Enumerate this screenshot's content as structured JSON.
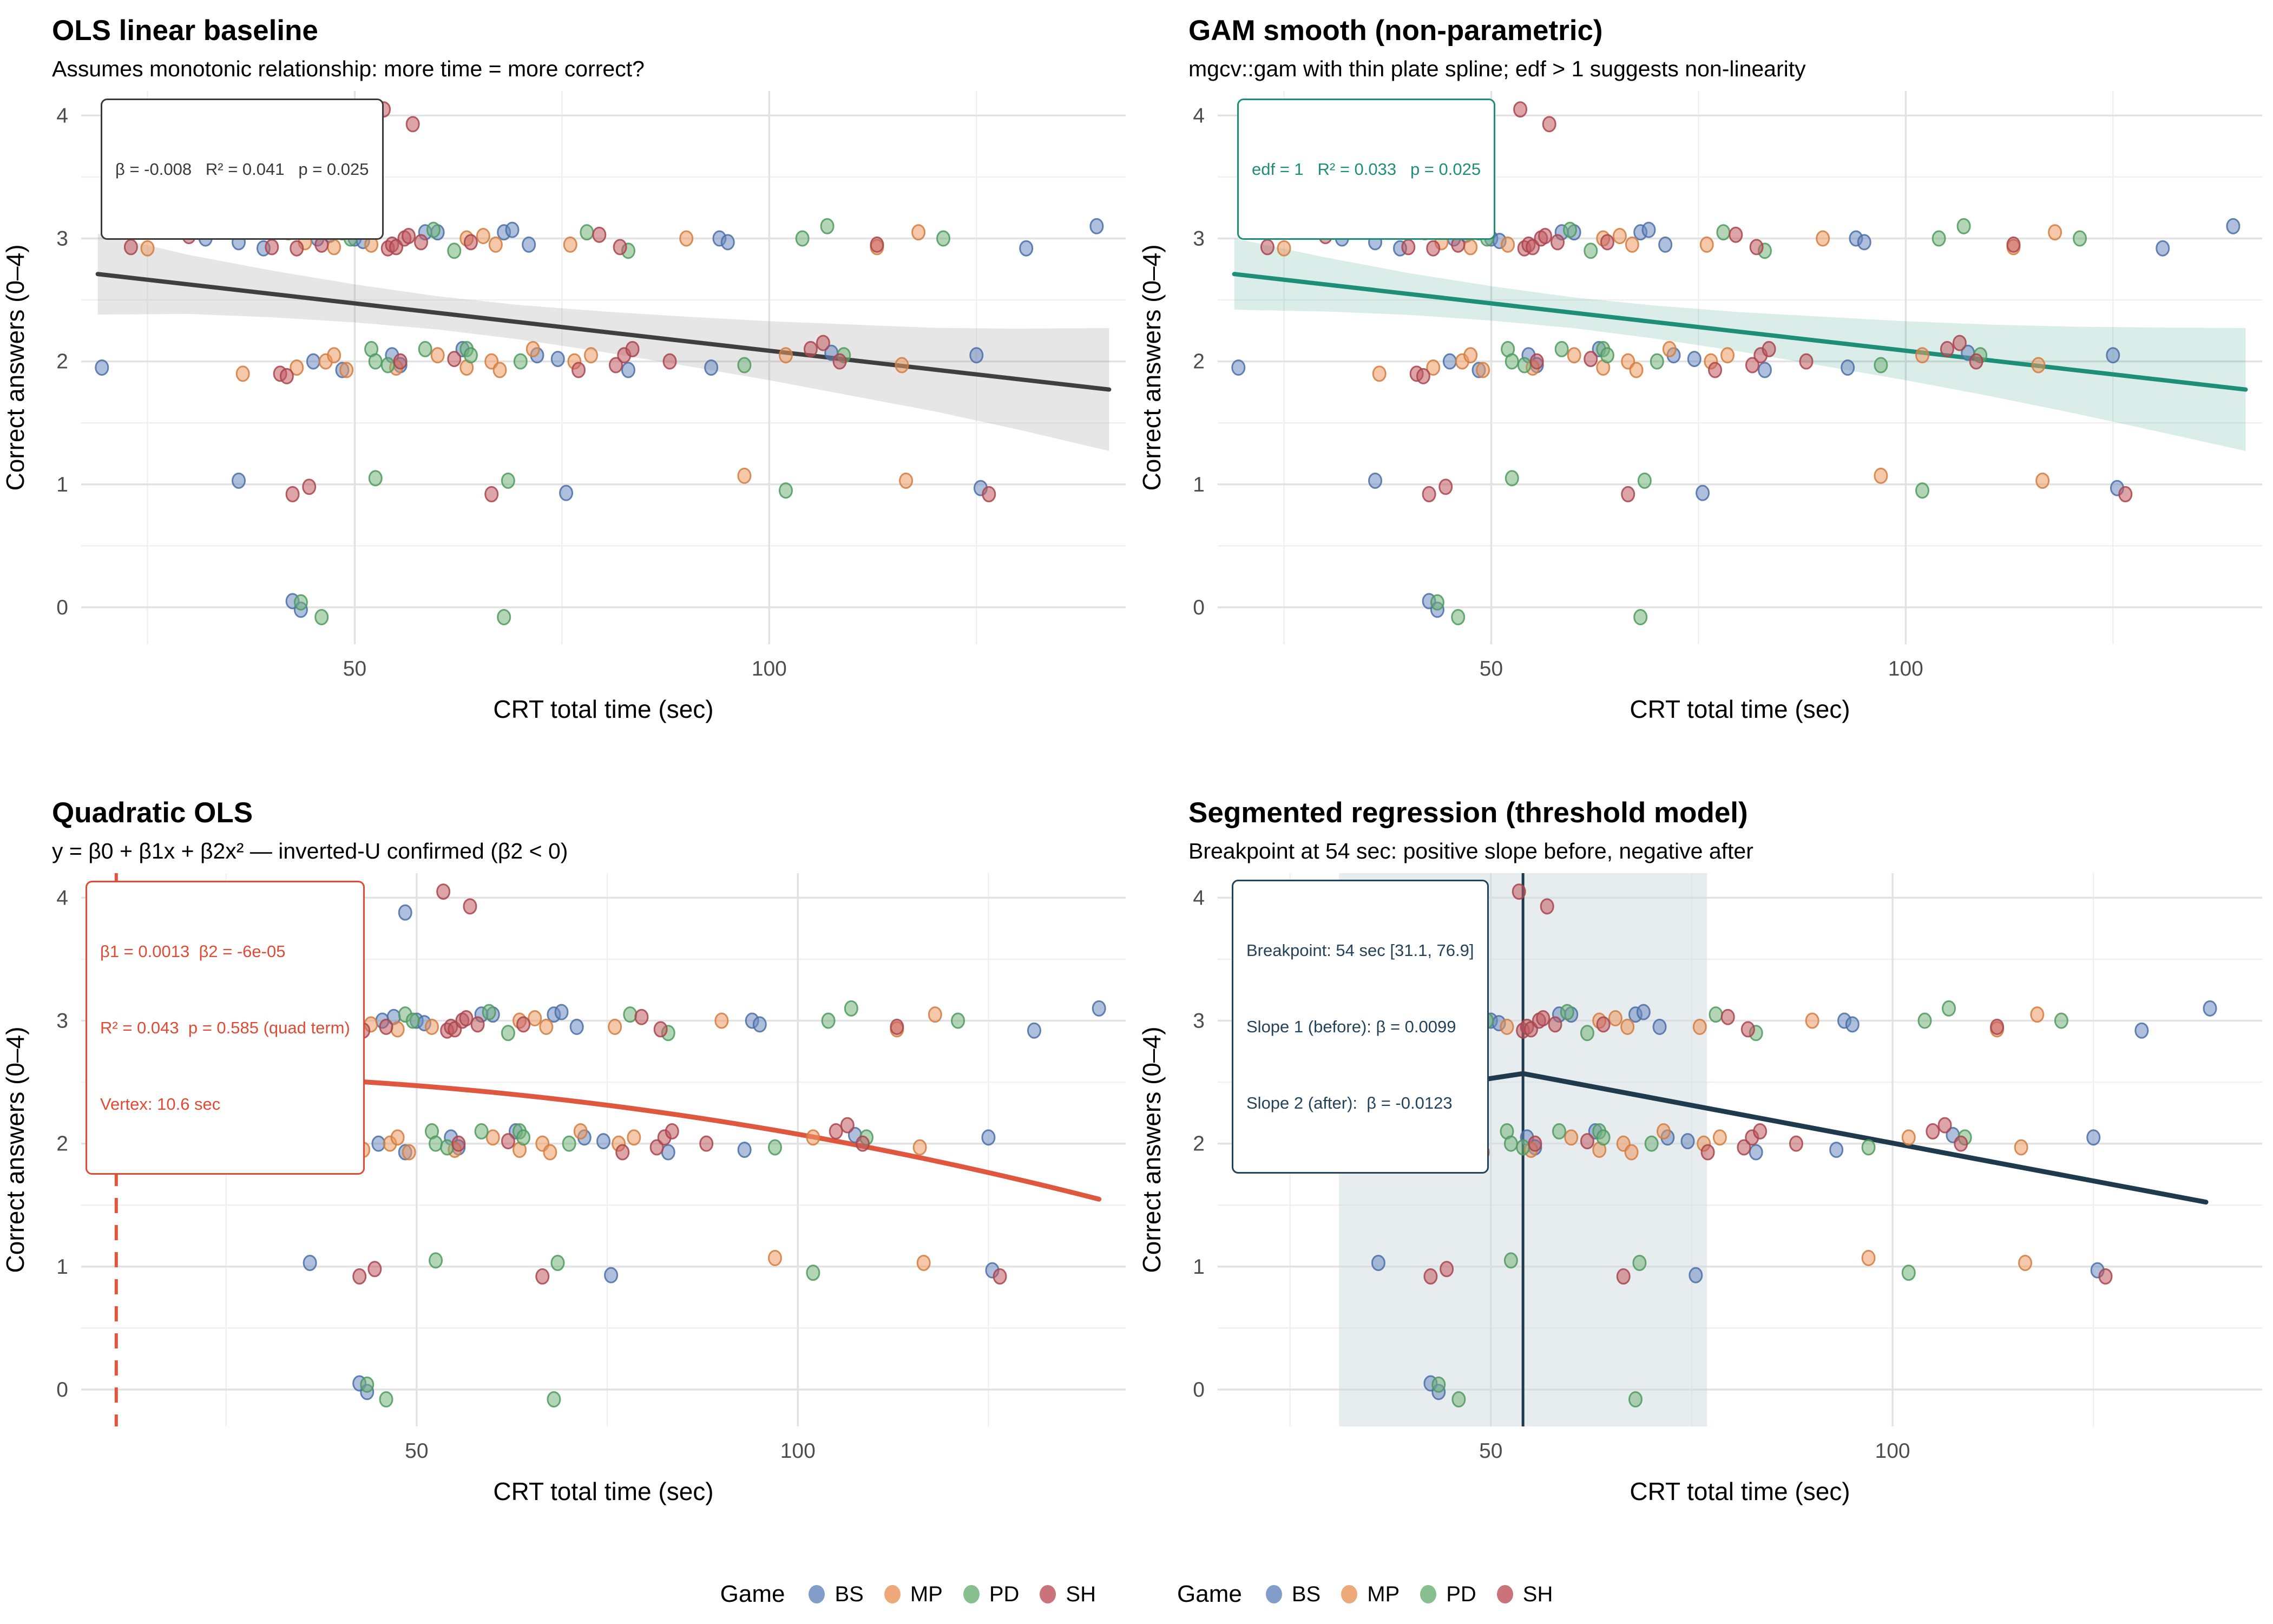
{
  "axes": {
    "x_title": "CRT total time (sec)",
    "y_title": "Correct answers (0–4)",
    "x_ticks": [
      50,
      100
    ],
    "x_minor": [
      25,
      75,
      125
    ],
    "y_ticks": [
      0,
      1,
      2,
      3,
      4
    ],
    "y_minor": [
      0.5,
      1.5,
      2.5,
      3.5
    ]
  },
  "legend": {
    "title": "Game",
    "items": [
      {
        "label": "BS",
        "color": "#6E8DC3"
      },
      {
        "label": "MP",
        "color": "#EC9B63"
      },
      {
        "label": "PD",
        "color": "#74B57C"
      },
      {
        "label": "SH",
        "color": "#C25B63"
      }
    ]
  },
  "panels": [
    {
      "key": "ols",
      "title": "OLS linear baseline",
      "subtitle": "Assumes monotonic relationship: more time = more correct?",
      "annotation": {
        "lines": [
          "β = -0.008   R² = 0.041   p = 0.025"
        ],
        "color": "#3a3a3a",
        "border": "#3a3a3a"
      },
      "x_domain": [
        17,
        143
      ],
      "line_color": "#3f3f3f",
      "ribbon_color": "#9a9a9a",
      "ribbon_opacity": 0.25,
      "fit": {
        "kind": "linear",
        "intercept": 2.857,
        "slope": -0.0077,
        "x_start": 19,
        "x_end": 141
      },
      "ribbon": [
        [
          19,
          0.33
        ],
        [
          30,
          0.24
        ],
        [
          40,
          0.19
        ],
        [
          50,
          0.155
        ],
        [
          60,
          0.135
        ],
        [
          70,
          0.14
        ],
        [
          80,
          0.165
        ],
        [
          90,
          0.2
        ],
        [
          100,
          0.24
        ],
        [
          110,
          0.29
        ],
        [
          120,
          0.34
        ],
        [
          130,
          0.41
        ],
        [
          141,
          0.5
        ]
      ]
    },
    {
      "key": "gam",
      "title": "GAM smooth (non-parametric)",
      "subtitle": "mgcv::gam with thin plate spline; edf > 1 suggests non-linearity",
      "annotation": {
        "lines": [
          "edf = 1   R² = 0.033   p = 0.025"
        ],
        "color": "#1e8e79",
        "border": "#1e8e79"
      },
      "x_domain": [
        17,
        143
      ],
      "line_color": "#1e8e79",
      "ribbon_color": "#1e8e79",
      "ribbon_opacity": 0.16,
      "fit": {
        "kind": "linear",
        "intercept": 2.857,
        "slope": -0.0077,
        "x_start": 19,
        "x_end": 141
      },
      "ribbon": [
        [
          19,
          0.29
        ],
        [
          30,
          0.22
        ],
        [
          40,
          0.17
        ],
        [
          50,
          0.14
        ],
        [
          60,
          0.125
        ],
        [
          70,
          0.135
        ],
        [
          80,
          0.16
        ],
        [
          90,
          0.2
        ],
        [
          100,
          0.24
        ],
        [
          110,
          0.29
        ],
        [
          120,
          0.35
        ],
        [
          130,
          0.42
        ],
        [
          141,
          0.5
        ]
      ]
    },
    {
      "key": "quad",
      "title": "Quadratic OLS",
      "subtitle": "y = β0 + β1x + β2x² — inverted-U confirmed (β2 < 0)",
      "annotation": {
        "lines": [
          "β1 = 0.0013  β2 = -6e-05",
          "R² = 0.043  p = 0.585 (quad term)",
          "Vertex: 10.6 sec"
        ],
        "color": "#E04B35",
        "border": "#E04B35"
      },
      "x_domain": [
        6,
        143
      ],
      "line_color": "#E05740",
      "fit": {
        "kind": "quadratic",
        "b0": 2.56,
        "b1": 0.0013,
        "b2": -6.13e-05,
        "x_start": 19.5,
        "x_end": 140,
        "vertex_x": 10.6
      }
    },
    {
      "key": "seg",
      "title": "Segmented regression (threshold model)",
      "subtitle": "Breakpoint at 54 sec: positive slope before, negative after",
      "annotation": {
        "lines": [
          "Breakpoint: 54 sec [31.1, 76.9]",
          "Slope 1 (before): β = 0.0099",
          "Slope 2 (after):  β = -0.0123"
        ],
        "color": "#24435A",
        "border": "#24435A"
      },
      "x_domain": [
        16,
        146
      ],
      "line_color": "#1F3A4D",
      "band_color": "#cfd9dd",
      "fit": {
        "kind": "segmented",
        "breakpoint": 54,
        "y_at_breakpoint": 2.57,
        "slope_before": 0.0099,
        "slope_after": -0.0123,
        "x_start": 19,
        "x_end": 139,
        "ci": [
          31.1,
          76.9
        ]
      }
    }
  ],
  "chart_data": {
    "type": "scatter",
    "title": "Four regression models of CRT accuracy vs. time",
    "xlabel": "CRT total time (sec)",
    "ylabel": "Correct answers (0–4)",
    "xlim": [
      17,
      143
    ],
    "ylim": [
      -0.3,
      4.2
    ],
    "x_ticks": [
      50,
      100
    ],
    "y_ticks": [
      0,
      1,
      2,
      3,
      4
    ],
    "grid": true,
    "legend_position": "bottom",
    "models": [
      {
        "name": "OLS linear",
        "beta": -0.008,
        "r2": 0.041,
        "p": 0.025
      },
      {
        "name": "GAM",
        "edf": 1,
        "r2": 0.033,
        "p": 0.025
      },
      {
        "name": "Quadratic OLS",
        "beta1": 0.0013,
        "beta2": -6e-05,
        "r2": 0.043,
        "p_quad": 0.585,
        "vertex_sec": 10.6
      },
      {
        "name": "Segmented",
        "breakpoint_sec": 54,
        "breakpoint_ci": [
          31.1,
          76.9
        ],
        "slope_before": 0.0099,
        "slope_after": -0.0123
      }
    ],
    "series": [
      {
        "name": "BS",
        "color": "#6E8DC3",
        "stroke": "#4A6FA5",
        "points": [
          [
            48.5,
            3.88
          ],
          [
            32,
            3.0
          ],
          [
            36,
            2.97
          ],
          [
            39,
            2.92
          ],
          [
            45.5,
            3.0
          ],
          [
            47,
            3.03
          ],
          [
            50,
            3.0
          ],
          [
            51,
            2.98
          ],
          [
            58.5,
            3.05
          ],
          [
            60,
            3.05
          ],
          [
            68,
            3.05
          ],
          [
            69,
            3.07
          ],
          [
            71,
            2.95
          ],
          [
            94,
            3.0
          ],
          [
            95,
            2.97
          ],
          [
            131,
            2.92
          ],
          [
            139.5,
            3.1
          ],
          [
            19.5,
            1.95
          ],
          [
            45,
            2.0
          ],
          [
            48.5,
            1.93
          ],
          [
            54.5,
            2.05
          ],
          [
            55.5,
            1.97
          ],
          [
            63,
            2.1
          ],
          [
            72,
            2.05
          ],
          [
            74.5,
            2.02
          ],
          [
            83,
            1.93
          ],
          [
            93,
            1.95
          ],
          [
            107.5,
            2.07
          ],
          [
            125,
            2.05
          ],
          [
            36,
            1.03
          ],
          [
            75.5,
            0.93
          ],
          [
            125.5,
            0.97
          ],
          [
            42.5,
            0.05
          ],
          [
            43.5,
            -0.02
          ]
        ]
      },
      {
        "name": "MP",
        "color": "#EC9B63",
        "stroke": "#D27D3F",
        "points": [
          [
            25,
            2.92
          ],
          [
            42,
            3.05
          ],
          [
            44,
            2.97
          ],
          [
            47.5,
            2.93
          ],
          [
            52,
            2.95
          ],
          [
            63.5,
            3.0
          ],
          [
            65.5,
            3.02
          ],
          [
            67,
            2.95
          ],
          [
            76,
            2.95
          ],
          [
            90,
            3.0
          ],
          [
            113,
            2.93
          ],
          [
            118,
            3.05
          ],
          [
            36.5,
            1.9
          ],
          [
            43,
            1.95
          ],
          [
            46.5,
            2.0
          ],
          [
            47.5,
            2.05
          ],
          [
            49,
            1.93
          ],
          [
            55,
            1.95
          ],
          [
            60,
            2.05
          ],
          [
            63.5,
            1.95
          ],
          [
            66.5,
            2.0
          ],
          [
            67.5,
            1.93
          ],
          [
            71.5,
            2.1
          ],
          [
            76.5,
            2.0
          ],
          [
            78.5,
            2.05
          ],
          [
            102,
            2.05
          ],
          [
            116,
            1.97
          ],
          [
            97,
            1.07
          ],
          [
            116.5,
            1.03
          ]
        ]
      },
      {
        "name": "PD",
        "color": "#74B57C",
        "stroke": "#4E9A5E",
        "points": [
          [
            38.5,
            3.07
          ],
          [
            48.5,
            3.05
          ],
          [
            49.5,
            3.0
          ],
          [
            59.5,
            3.07
          ],
          [
            62,
            2.9
          ],
          [
            78,
            3.05
          ],
          [
            83,
            2.9
          ],
          [
            104,
            3.0
          ],
          [
            107,
            3.1
          ],
          [
            121,
            3.0
          ],
          [
            52,
            2.1
          ],
          [
            52.5,
            2.0
          ],
          [
            54,
            1.97
          ],
          [
            58.5,
            2.1
          ],
          [
            63.5,
            2.1
          ],
          [
            64,
            2.05
          ],
          [
            70,
            2.0
          ],
          [
            97,
            1.97
          ],
          [
            109,
            2.05
          ],
          [
            52.5,
            1.05
          ],
          [
            68.5,
            1.03
          ],
          [
            102,
            0.95
          ],
          [
            43.5,
            0.04
          ],
          [
            46,
            -0.08
          ],
          [
            68,
            -0.08
          ]
        ]
      },
      {
        "name": "SH",
        "color": "#C25B63",
        "stroke": "#A8444E",
        "points": [
          [
            53.5,
            4.05
          ],
          [
            57,
            3.93
          ],
          [
            23,
            2.93
          ],
          [
            30,
            3.02
          ],
          [
            40,
            2.93
          ],
          [
            43,
            2.92
          ],
          [
            46,
            2.95
          ],
          [
            54,
            2.92
          ],
          [
            54.5,
            2.95
          ],
          [
            55,
            2.93
          ],
          [
            56,
            3.0
          ],
          [
            56.5,
            3.02
          ],
          [
            58,
            2.97
          ],
          [
            64,
            2.97
          ],
          [
            79.5,
            3.03
          ],
          [
            82,
            2.93
          ],
          [
            113,
            2.95
          ],
          [
            41,
            1.9
          ],
          [
            41.8,
            1.88
          ],
          [
            55.5,
            2.0
          ],
          [
            62,
            2.02
          ],
          [
            77,
            1.93
          ],
          [
            81.5,
            1.97
          ],
          [
            82.5,
            2.05
          ],
          [
            83.5,
            2.1
          ],
          [
            88,
            2.0
          ],
          [
            105,
            2.1
          ],
          [
            106.5,
            2.15
          ],
          [
            108.5,
            2.0
          ],
          [
            42.5,
            0.92
          ],
          [
            44.5,
            0.98
          ],
          [
            66.5,
            0.92
          ],
          [
            126.5,
            0.92
          ]
        ]
      }
    ]
  }
}
